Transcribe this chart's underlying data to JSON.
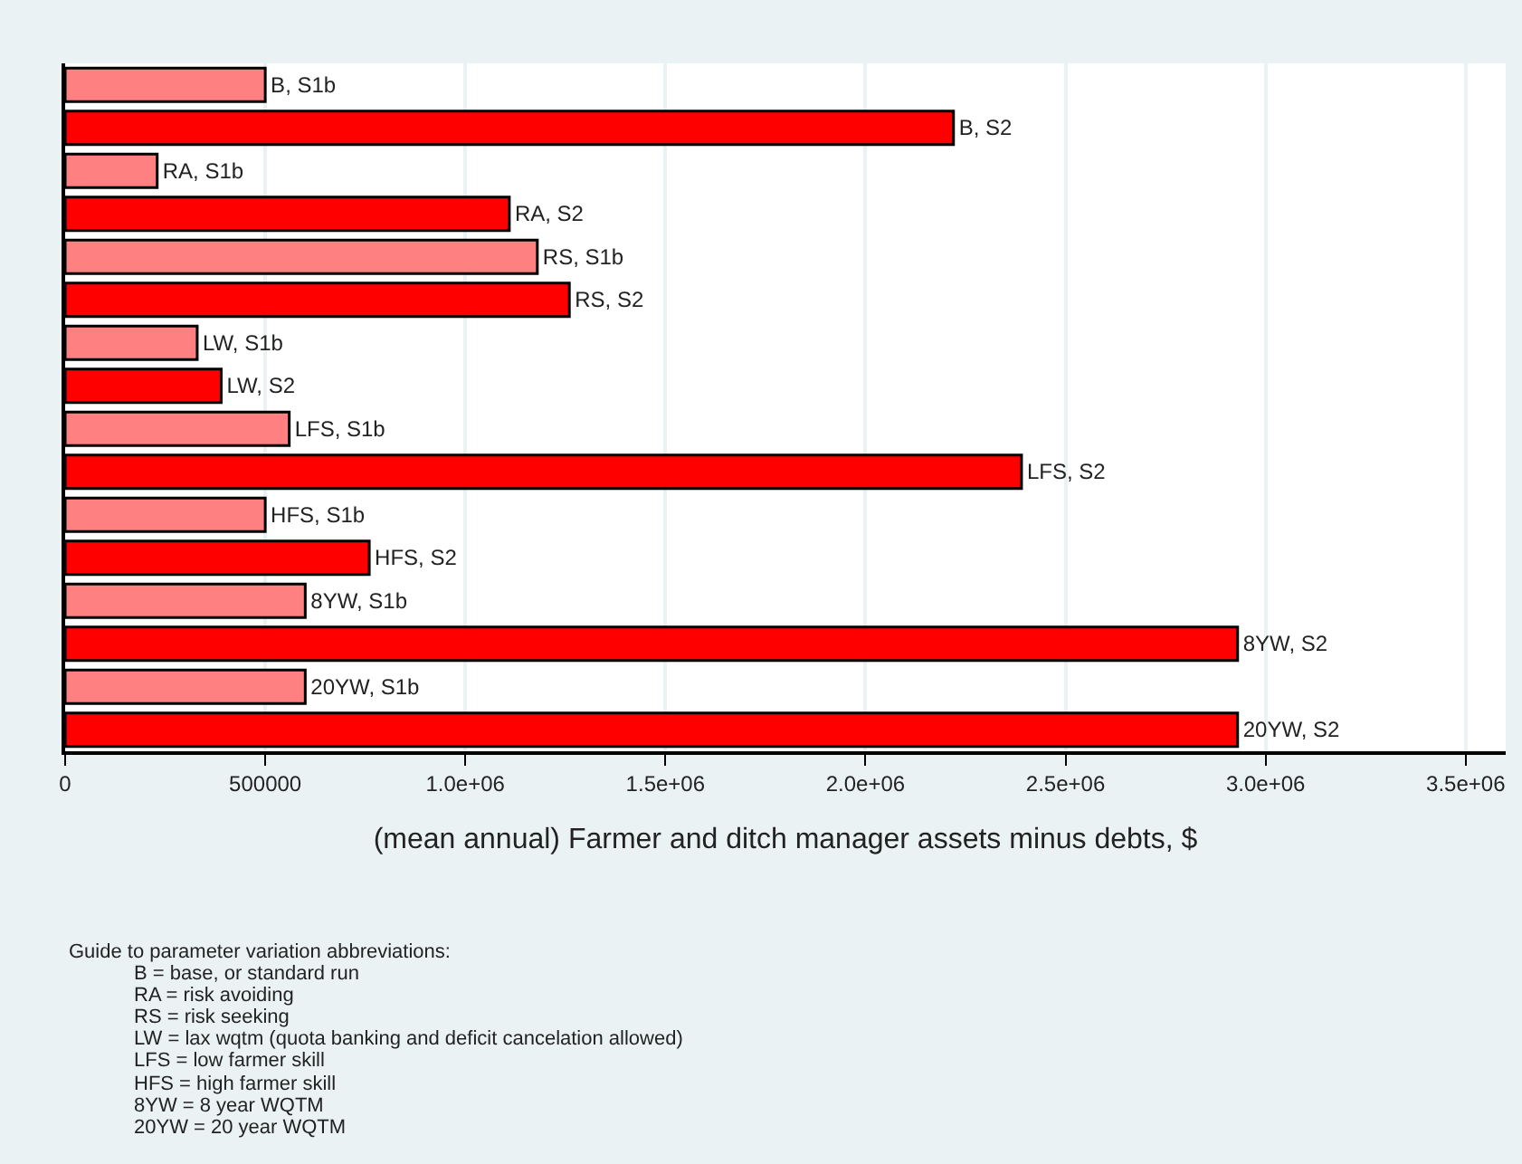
{
  "chart_data": {
    "type": "bar",
    "orientation": "horizontal",
    "categories": [
      "B, S1b",
      "B, S2",
      "RA, S1b",
      "RA, S2",
      "RS, S1b",
      "RS, S2",
      "LW, S1b",
      "LW, S2",
      "LFS, S1b",
      "LFS, S2",
      "HFS, S1b",
      "HFS, S2",
      "8YW, S1b",
      "8YW, S2",
      "20YW, S1b",
      "20YW, S2"
    ],
    "values": [
      500000,
      2220000,
      230000,
      1110000,
      1180000,
      1260000,
      330000,
      390000,
      560000,
      2390000,
      500000,
      760000,
      600000,
      2930000,
      600000,
      2930000
    ],
    "colors": [
      "#ff8080",
      "#ff0000",
      "#ff8080",
      "#ff0000",
      "#ff8080",
      "#ff0000",
      "#ff8080",
      "#ff0000",
      "#ff8080",
      "#ff0000",
      "#ff8080",
      "#ff0000",
      "#ff8080",
      "#ff0000",
      "#ff8080",
      "#ff0000"
    ],
    "xlabel": "(mean annual) Farmer and ditch manager assets minus debts, $",
    "xlim": [
      0,
      3600000
    ],
    "xticks": [
      0,
      500000,
      {
        "value": 1000000,
        "label": "1.0e+06"
      },
      {
        "value": 1500000,
        "label": "1.5e+06"
      },
      {
        "value": 2000000,
        "label": "2.0e+06"
      },
      {
        "value": 2500000,
        "label": "2.5e+06"
      },
      {
        "value": 3000000,
        "label": "3.0e+06"
      },
      {
        "value": 3500000,
        "label": "3.5e+06"
      }
    ],
    "grid": "x",
    "legend": false,
    "tick_labels": "x",
    "annotations": [
      "Guide to parameter variation abbreviations:",
      "B = base, or standard run",
      "RA = risk avoiding",
      "RS = risk seeking",
      "LW = lax wqtm (quota banking and deficit cancelation allowed)",
      "LFS = low farmer skill",
      "HFS = high farmer skill",
      "8YW = 8 year WQTM",
      "20YW = 20 year WQTM"
    ]
  }
}
